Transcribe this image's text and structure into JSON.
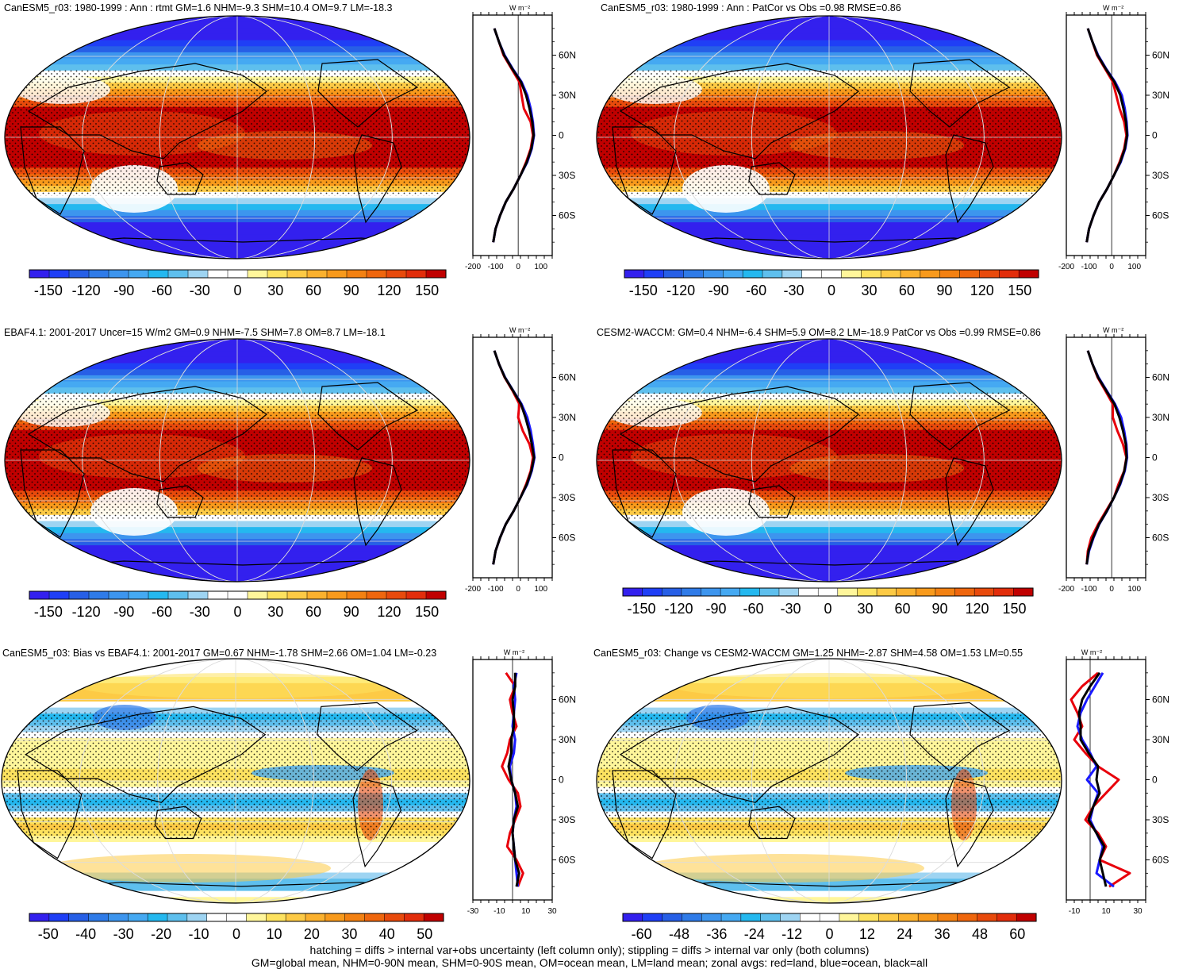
{
  "chart_data": [
    {
      "type": "heatmap",
      "title": "CanESM5_r03: 1980-1999 : Ann : rtmt GM=1.6 NHM=-9.3 SHM=10.4 OM=9.7 LM=-18.3",
      "colorbar": {
        "ticks": [
          "-150",
          "-120",
          "-90",
          "-60",
          "-30",
          "0",
          "30",
          "60",
          "90",
          "120",
          "150"
        ],
        "range": [
          -165,
          165
        ]
      },
      "zonal_profile": {
        "unit": "W m⁻²",
        "x_ticks": [
          "-200",
          "-100",
          "0",
          "100"
        ],
        "y_ticks": [
          "60N",
          "30N",
          "0",
          "30S",
          "60S"
        ],
        "xlim": [
          -200,
          150
        ],
        "series": [
          {
            "name": "red",
            "color": "#e8000b",
            "lat": [
              80,
              70,
              60,
              50,
              40,
              30,
              20,
              10,
              0,
              -10,
              -20,
              -30,
              -40,
              -50,
              -60,
              -70,
              -80
            ],
            "values": [
              -105,
              -85,
              -65,
              -30,
              5,
              15,
              25,
              55,
              65,
              55,
              35,
              10,
              -20,
              -55,
              -80,
              -100,
              -110
            ]
          },
          {
            "name": "blue",
            "color": "#1a1aff",
            "lat": [
              80,
              70,
              60,
              50,
              40,
              30,
              20,
              10,
              0,
              -10,
              -20,
              -30,
              -40,
              -50,
              -60,
              -70,
              -80
            ],
            "values": [
              -105,
              -85,
              -60,
              -25,
              15,
              40,
              55,
              65,
              70,
              60,
              40,
              10,
              -20,
              -55,
              -80,
              -100,
              -110
            ]
          },
          {
            "name": "black",
            "color": "#000000",
            "lat": [
              80,
              70,
              60,
              50,
              40,
              30,
              20,
              10,
              0,
              -10,
              -20,
              -30,
              -40,
              -50,
              -60,
              -70,
              -80
            ],
            "values": [
              -105,
              -85,
              -62,
              -27,
              12,
              35,
              50,
              62,
              68,
              58,
              38,
              10,
              -20,
              -55,
              -80,
              -100,
              -110
            ]
          }
        ]
      }
    },
    {
      "type": "heatmap",
      "title": "CanESM5_r03: 1980-1999 : Ann : PatCor vs Obs =0.98 RMSE=0.86",
      "colorbar": {
        "ticks": [
          "-150",
          "-120",
          "-90",
          "-60",
          "-30",
          "0",
          "30",
          "60",
          "90",
          "120",
          "150"
        ],
        "range": [
          -165,
          165
        ]
      },
      "zonal_profile": {
        "unit": "W m⁻²",
        "x_ticks": [
          "-200",
          "-100",
          "0",
          "100"
        ],
        "y_ticks": [
          "60N",
          "30N",
          "0",
          "30S",
          "60S"
        ],
        "xlim": [
          -200,
          150
        ],
        "series": [
          {
            "name": "red",
            "color": "#e8000b",
            "lat": [
              80,
              70,
              60,
              50,
              40,
              30,
              20,
              10,
              0,
              -10,
              -20,
              -30,
              -40,
              -50,
              -60,
              -70,
              -80
            ],
            "values": [
              -105,
              -85,
              -65,
              -30,
              5,
              20,
              35,
              55,
              65,
              55,
              35,
              10,
              -20,
              -55,
              -80,
              -100,
              -110
            ]
          },
          {
            "name": "blue",
            "color": "#1a1aff",
            "lat": [
              80,
              70,
              60,
              50,
              40,
              30,
              20,
              10,
              0,
              -10,
              -20,
              -30,
              -40,
              -50,
              -60,
              -70,
              -80
            ],
            "values": [
              -105,
              -85,
              -60,
              -25,
              15,
              45,
              58,
              66,
              70,
              60,
              40,
              10,
              -20,
              -55,
              -80,
              -100,
              -110
            ]
          },
          {
            "name": "black",
            "color": "#000000",
            "lat": [
              80,
              70,
              60,
              50,
              40,
              30,
              20,
              10,
              0,
              -10,
              -20,
              -30,
              -40,
              -50,
              -60,
              -70,
              -80
            ],
            "values": [
              -105,
              -85,
              -62,
              -27,
              12,
              38,
              52,
              63,
              68,
              58,
              38,
              10,
              -20,
              -55,
              -80,
              -100,
              -110
            ]
          }
        ]
      }
    },
    {
      "type": "heatmap",
      "title": "EBAF4.1: 2001-2017 Uncer=15 W/m2 GM=0.9 NHM=-7.5 SHM=7.8 OM=8.7 LM=-18.1",
      "colorbar": {
        "ticks": [
          "-150",
          "-120",
          "-90",
          "-60",
          "-30",
          "0",
          "30",
          "60",
          "90",
          "120",
          "150"
        ],
        "range": [
          -165,
          165
        ]
      },
      "zonal_profile": {
        "unit": "W m⁻²",
        "x_ticks": [
          "-200",
          "-100",
          "0",
          "100"
        ],
        "y_ticks": [
          "60N",
          "30N",
          "0",
          "30S",
          "60S"
        ],
        "xlim": [
          -200,
          150
        ],
        "series": [
          {
            "name": "red",
            "color": "#e8000b",
            "lat": [
              80,
              70,
              60,
              50,
              40,
              30,
              20,
              10,
              0,
              -10,
              -20,
              -30,
              -40,
              -50,
              -60,
              -70,
              -80
            ],
            "values": [
              -105,
              -85,
              -60,
              -25,
              5,
              0,
              20,
              50,
              65,
              55,
              35,
              10,
              -20,
              -55,
              -80,
              -100,
              -110
            ]
          },
          {
            "name": "blue",
            "color": "#1a1aff",
            "lat": [
              80,
              70,
              60,
              50,
              40,
              30,
              20,
              10,
              0,
              -10,
              -20,
              -30,
              -40,
              -50,
              -60,
              -70,
              -80
            ],
            "values": [
              -105,
              -85,
              -58,
              -22,
              15,
              40,
              55,
              65,
              72,
              60,
              40,
              10,
              -20,
              -55,
              -80,
              -100,
              -110
            ]
          },
          {
            "name": "black",
            "color": "#000000",
            "lat": [
              80,
              70,
              60,
              50,
              40,
              30,
              20,
              10,
              0,
              -10,
              -20,
              -30,
              -40,
              -50,
              -60,
              -70,
              -80
            ],
            "values": [
              -105,
              -85,
              -59,
              -23,
              12,
              32,
              48,
              60,
              70,
              58,
              38,
              10,
              -20,
              -55,
              -80,
              -100,
              -110
            ]
          }
        ]
      }
    },
    {
      "type": "heatmap",
      "title": "CESM2-WACCM: GM=0.4 NHM=-6.4 SHM=5.9 OM=8.2 LM=-18.9 PatCor vs Obs =0.99 RMSE=0.86",
      "colorbar": {
        "ticks": [
          "-150",
          "-120",
          "-90",
          "-60",
          "-30",
          "0",
          "30",
          "60",
          "90",
          "120",
          "150"
        ],
        "range": [
          -165,
          165
        ]
      },
      "zonal_profile": {
        "unit": "W m⁻²",
        "x_ticks": [
          "-200",
          "-100",
          "0",
          "100"
        ],
        "y_ticks": [
          "60N",
          "30N",
          "0",
          "30S",
          "60S"
        ],
        "xlim": [
          -200,
          150
        ],
        "series": [
          {
            "name": "red",
            "color": "#e8000b",
            "lat": [
              80,
              70,
              60,
              50,
              40,
              30,
              20,
              10,
              0,
              -10,
              -20,
              -30,
              -40,
              -50,
              -60,
              -70,
              -80
            ],
            "values": [
              -105,
              -85,
              -62,
              -28,
              5,
              5,
              25,
              50,
              65,
              55,
              30,
              10,
              -25,
              -60,
              -90,
              -105,
              -110
            ]
          },
          {
            "name": "blue",
            "color": "#1a1aff",
            "lat": [
              80,
              70,
              60,
              50,
              40,
              30,
              20,
              10,
              0,
              -10,
              -20,
              -30,
              -40,
              -50,
              -60,
              -70,
              -80
            ],
            "values": [
              -105,
              -85,
              -58,
              -22,
              15,
              42,
              55,
              65,
              68,
              58,
              38,
              10,
              -20,
              -55,
              -80,
              -100,
              -110
            ]
          },
          {
            "name": "black",
            "color": "#000000",
            "lat": [
              80,
              70,
              60,
              50,
              40,
              30,
              20,
              10,
              0,
              -10,
              -20,
              -30,
              -40,
              -50,
              -60,
              -70,
              -80
            ],
            "values": [
              -105,
              -85,
              -60,
              -24,
              12,
              34,
              50,
              62,
              66,
              56,
              36,
              10,
              -21,
              -56,
              -82,
              -102,
              -110
            ]
          }
        ]
      }
    },
    {
      "type": "heatmap",
      "title": "CanESM5_r03: Bias vs EBAF4.1: 2001-2017 GM=0.67 NHM=-1.78 SHM=2.66 OM=1.04 LM=-0.23",
      "colorbar": {
        "ticks": [
          "-50",
          "-40",
          "-30",
          "-20",
          "-10",
          "0",
          "10",
          "20",
          "30",
          "40",
          "50"
        ],
        "range": [
          -55,
          55
        ]
      },
      "zonal_profile": {
        "unit": "W m⁻²",
        "x_ticks": [
          "-30",
          "-10",
          "10",
          "30"
        ],
        "y_ticks": [
          "60N",
          "30N",
          "0",
          "30S",
          "60S"
        ],
        "xlim": [
          -30,
          30
        ],
        "series": [
          {
            "name": "red",
            "color": "#e8000b",
            "lat": [
              80,
              70,
              60,
              50,
              40,
              30,
              20,
              10,
              0,
              -10,
              -20,
              -30,
              -40,
              -50,
              -60,
              -70,
              -80
            ],
            "values": [
              -5,
              2,
              -2,
              0,
              3,
              -2,
              -4,
              -8,
              -3,
              4,
              6,
              2,
              -2,
              -4,
              3,
              8,
              4
            ]
          },
          {
            "name": "blue",
            "color": "#1a1aff",
            "lat": [
              80,
              70,
              60,
              50,
              40,
              30,
              20,
              10,
              0,
              -10,
              -20,
              -30,
              -40,
              -50,
              -60,
              -70,
              -80
            ],
            "values": [
              3,
              1,
              2,
              1,
              0,
              2,
              1,
              -2,
              -1,
              2,
              3,
              1,
              0,
              1,
              2,
              3,
              4
            ]
          },
          {
            "name": "black",
            "color": "#000000",
            "lat": [
              80,
              70,
              60,
              50,
              40,
              30,
              20,
              10,
              0,
              -10,
              -20,
              -30,
              -40,
              -50,
              -60,
              -70,
              -80
            ],
            "values": [
              2,
              2,
              0,
              1,
              1,
              -1,
              -1,
              -3,
              -1,
              2,
              4,
              1,
              0,
              1,
              2,
              5,
              3
            ]
          }
        ]
      }
    },
    {
      "type": "heatmap",
      "title": "CanESM5_r03: Change vs CESM2-WACCM GM=1.25 NHM=-2.87 SHM=4.58 OM=1.53 LM=0.55",
      "colorbar": {
        "ticks": [
          "-60",
          "-48",
          "-36",
          "-24",
          "-12",
          "0",
          "12",
          "24",
          "36",
          "48",
          "60"
        ],
        "range": [
          -66,
          66
        ]
      },
      "zonal_profile": {
        "unit": "W m⁻²",
        "x_ticks": [
          "-10",
          "10",
          "30"
        ],
        "y_ticks": [
          "60N",
          "30N",
          "0",
          "30S",
          "60S"
        ],
        "xlim": [
          -15,
          35
        ],
        "series": [
          {
            "name": "red",
            "color": "#e8000b",
            "lat": [
              80,
              70,
              60,
              50,
              40,
              30,
              20,
              10,
              0,
              -10,
              -20,
              -30,
              -40,
              -50,
              -60,
              -70,
              -80
            ],
            "values": [
              5,
              -5,
              -12,
              -8,
              -5,
              -10,
              -3,
              5,
              18,
              10,
              2,
              -3,
              5,
              10,
              6,
              25,
              12
            ]
          },
          {
            "name": "blue",
            "color": "#1a1aff",
            "lat": [
              80,
              70,
              60,
              50,
              40,
              30,
              20,
              10,
              0,
              -10,
              -20,
              -30,
              -40,
              -50,
              -60,
              -70,
              -80
            ],
            "values": [
              8,
              3,
              -2,
              -6,
              -8,
              -5,
              0,
              4,
              -2,
              5,
              2,
              0,
              4,
              8,
              6,
              4,
              15
            ]
          },
          {
            "name": "black",
            "color": "#000000",
            "lat": [
              80,
              70,
              60,
              50,
              40,
              30,
              20,
              10,
              0,
              -10,
              -20,
              -30,
              -40,
              -50,
              -60,
              -70,
              -80
            ],
            "values": [
              6,
              0,
              -5,
              -7,
              -6,
              -6,
              -1,
              5,
              4,
              6,
              2,
              -1,
              4,
              9,
              6,
              8,
              10
            ]
          }
        ]
      }
    }
  ],
  "footer": {
    "line1": "hatching = diffs > internal var+obs uncertainty (left column only); stippling = diffs > internal var only (both columns)",
    "line2": "GM=global mean, NHM=0-90N mean, SHM=0-90S mean, OM=ocean mean, LM=land mean; zonal avgs: red=land, blue=ocean, black=all"
  },
  "palette": [
    "#3320ee",
    "#1f3ff6",
    "#275fe6",
    "#2f7be8",
    "#3d95ee",
    "#45a9f2",
    "#24b8ef",
    "#5ebfed",
    "#9ed4f2",
    "#ffffff",
    "#ffffff",
    "#fff69b",
    "#fde25f",
    "#fdca45",
    "#fbb12e",
    "#f89a1c",
    "#f38112",
    "#ef660d",
    "#e84a0c",
    "#e22d0b",
    "#c00000"
  ]
}
